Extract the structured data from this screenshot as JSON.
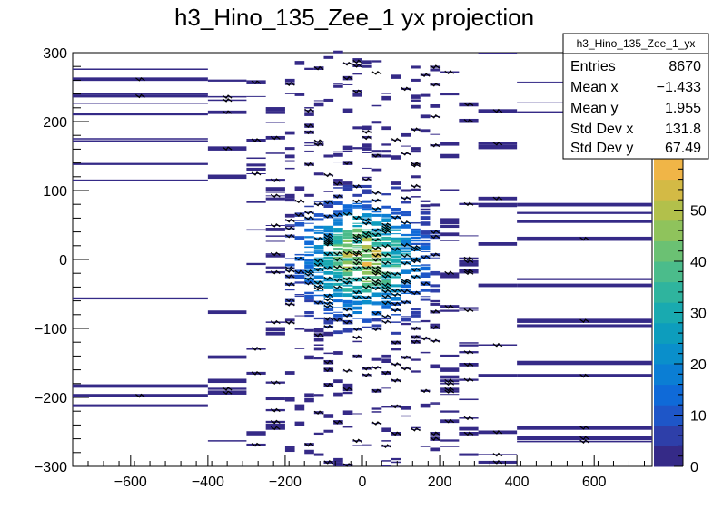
{
  "chart_data": {
    "type": "heatmap",
    "title": "h3_Hino_135_Zee_1 yx projection",
    "xlabel": "",
    "ylabel": "",
    "xlim": [
      -750,
      750
    ],
    "ylim": [
      -300,
      300
    ],
    "x_ticks": [
      -600,
      -400,
      -200,
      0,
      200,
      400,
      600
    ],
    "y_ticks": [
      -300,
      -200,
      -100,
      0,
      100,
      200,
      300
    ],
    "colorbar": {
      "range": [
        0,
        60
      ],
      "ticks": [
        0,
        10,
        20,
        30,
        40,
        50
      ],
      "palette": [
        "#352a87",
        "#2e3fa9",
        "#1e56c8",
        "#0f6ad8",
        "#0b7ed4",
        "#0a8fcb",
        "#0d9dbd",
        "#19aab0",
        "#2fb49e",
        "#4bbc8b",
        "#6bc173",
        "#8fc35c",
        "#b2c04b",
        "#d3ba45",
        "#f0b547"
      ]
    },
    "stats": {
      "name": "h3_Hino_135_Zee_1_yx",
      "entries": {
        "label": "Entries",
        "value": "8670"
      },
      "mean_x": {
        "label": "Mean x",
        "value": "−1.433"
      },
      "mean_y": {
        "label": "Mean y",
        "value": "1.955"
      },
      "std_x": {
        "label": "Std Dev x",
        "value": "131.8"
      },
      "std_y": {
        "label": "Std Dev y",
        "value": "67.49"
      }
    },
    "columns": [
      {
        "x0": -750,
        "x1": -400
      },
      {
        "x0": -400,
        "x1": -300
      },
      {
        "x0": -300,
        "x1": -250
      },
      {
        "x0": -250,
        "x1": -200
      },
      {
        "x0": -200,
        "x1": -175
      },
      {
        "x0": -175,
        "x1": -150
      },
      {
        "x0": -150,
        "x1": -125
      },
      {
        "x0": -125,
        "x1": -100
      },
      {
        "x0": -100,
        "x1": -75
      },
      {
        "x0": -75,
        "x1": -50
      },
      {
        "x0": -50,
        "x1": -25
      },
      {
        "x0": -25,
        "x1": 0
      },
      {
        "x0": 0,
        "x1": 25
      },
      {
        "x0": 25,
        "x1": 50
      },
      {
        "x0": 50,
        "x1": 75
      },
      {
        "x0": 75,
        "x1": 100
      },
      {
        "x0": 100,
        "x1": 125
      },
      {
        "x0": 125,
        "x1": 150
      },
      {
        "x0": 150,
        "x1": 175
      },
      {
        "x0": 175,
        "x1": 200
      },
      {
        "x0": 200,
        "x1": 250
      },
      {
        "x0": 250,
        "x1": 300
      },
      {
        "x0": 300,
        "x1": 400
      },
      {
        "x0": 400,
        "x1": 750
      }
    ],
    "y_bin_edges_note": "variable y bins; density peaks near x=0, y=0",
    "peak_value": 58
  }
}
